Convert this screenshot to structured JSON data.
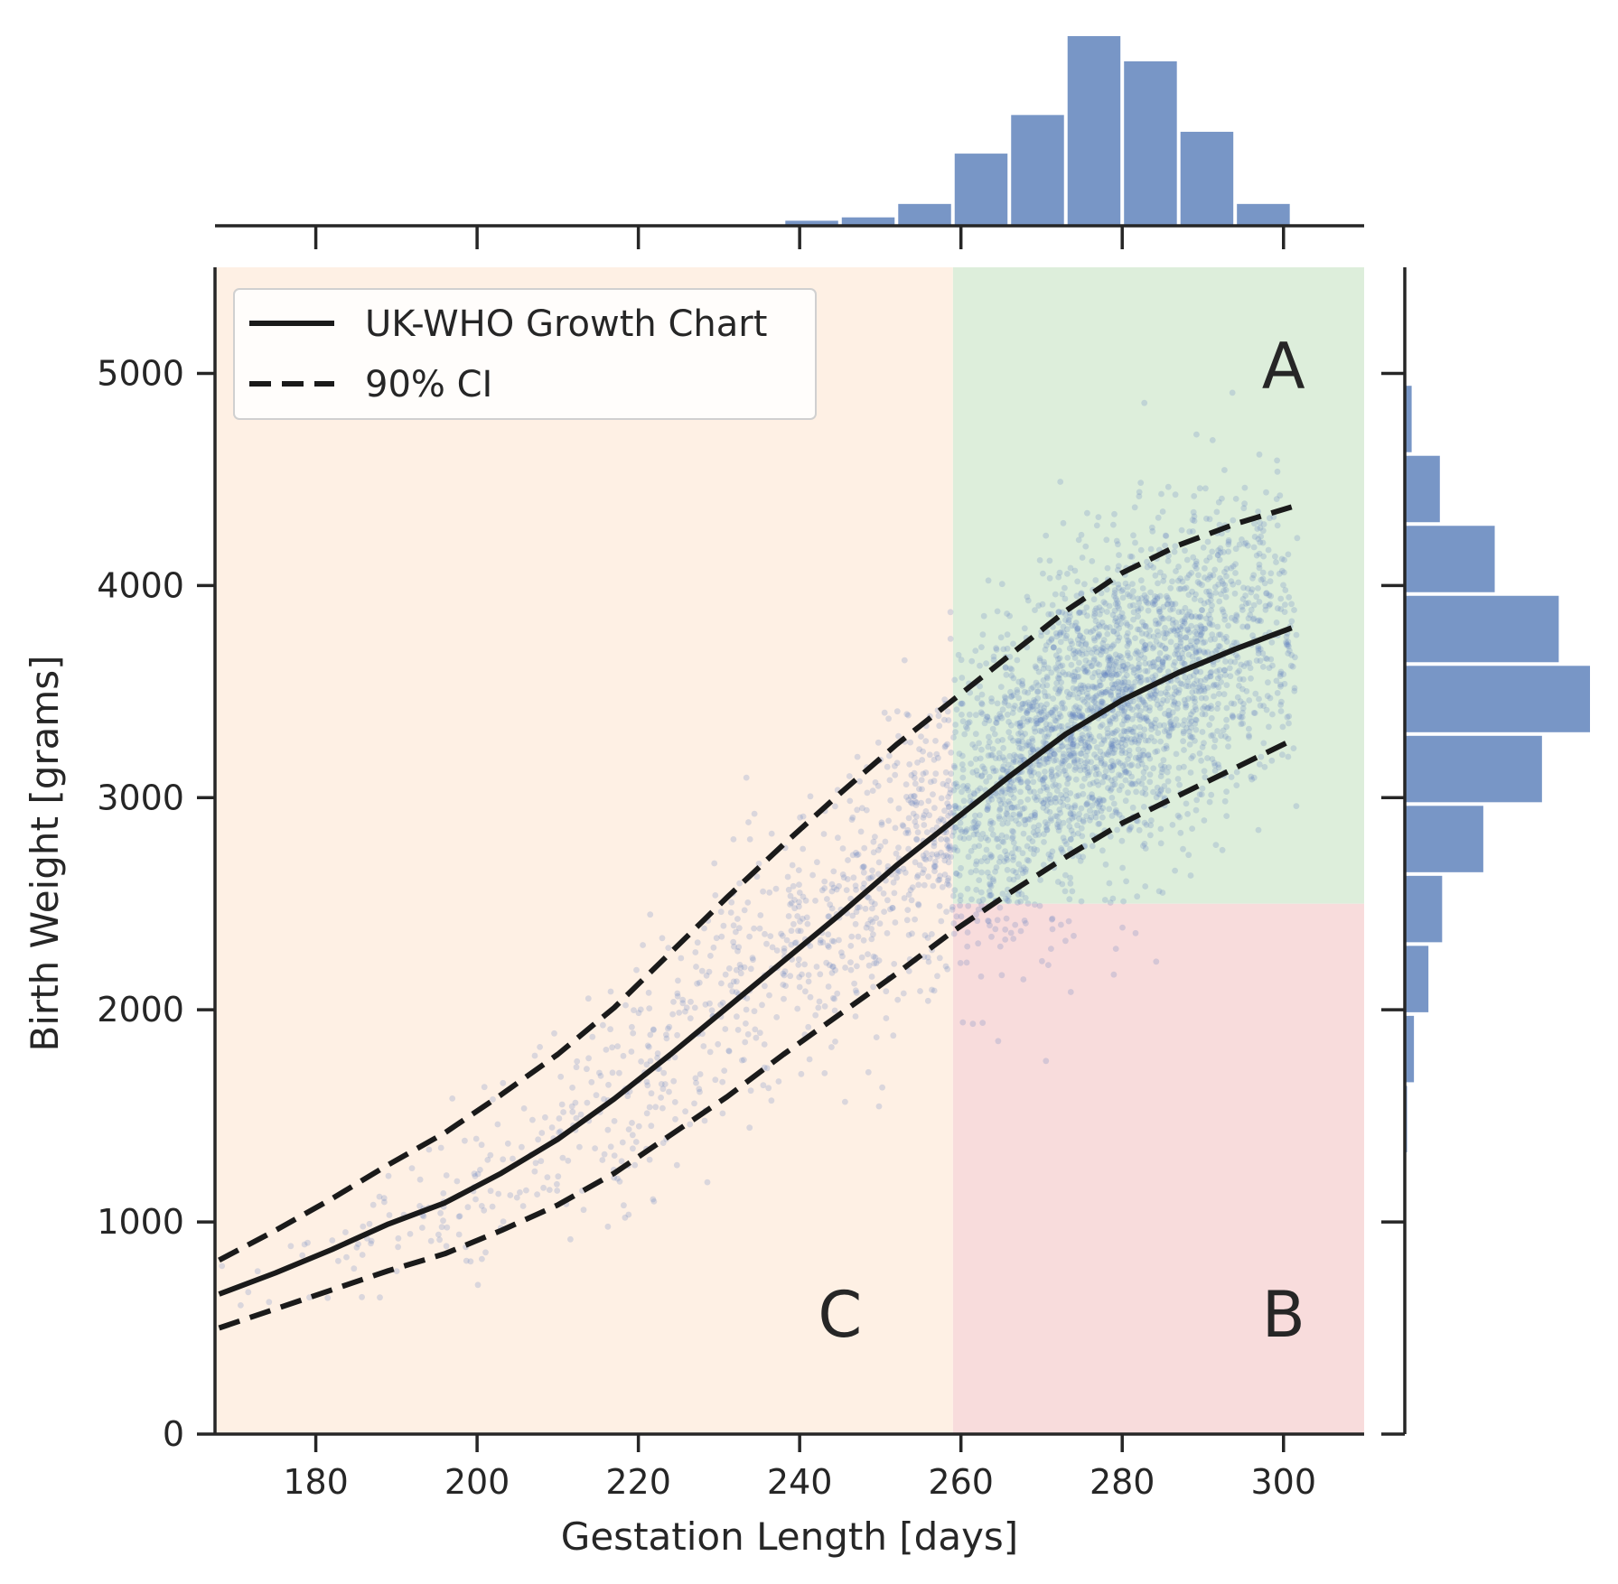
{
  "chart_data": {
    "type": "scatter",
    "xlabel": "Gestation Length [days]",
    "ylabel": "Birth Weight [grams]",
    "xlim": [
      167.5,
      310
    ],
    "ylim": [
      0,
      5500
    ],
    "xticks": [
      180,
      200,
      220,
      240,
      260,
      280,
      300
    ],
    "yticks": [
      0,
      1000,
      2000,
      3000,
      4000,
      5000
    ],
    "grid": false,
    "legend_position": "top-left",
    "legend": [
      {
        "label": "UK-WHO Growth Chart",
        "style": "solid"
      },
      {
        "label": "90% CI",
        "style": "dashed"
      }
    ],
    "regions": [
      {
        "label": "A",
        "x": [
          259,
          310
        ],
        "y": [
          2500,
          5500
        ],
        "color": "#ddeedb"
      },
      {
        "label": "B",
        "x": [
          259,
          310
        ],
        "y": [
          0,
          2500
        ],
        "color": "#f8dcdc"
      },
      {
        "label": "C",
        "x": [
          167.5,
          259
        ],
        "y": [
          0,
          5500
        ],
        "color": "#fef0e4"
      }
    ],
    "series": [
      {
        "name": "UK-WHO Growth Chart",
        "style": "solid",
        "x": [
          168,
          175,
          182,
          189,
          196,
          203,
          210,
          217,
          224,
          231,
          238,
          245,
          252,
          259,
          266,
          273,
          280,
          287,
          294,
          301
        ],
        "y": [
          660,
          760,
          870,
          990,
          1090,
          1230,
          1390,
          1580,
          1790,
          2010,
          2230,
          2450,
          2680,
          2890,
          3100,
          3300,
          3460,
          3590,
          3700,
          3800
        ]
      },
      {
        "name": "90% CI",
        "style": "dashed",
        "x": [
          168,
          175,
          182,
          189,
          196,
          203,
          210,
          217,
          224,
          231,
          238,
          245,
          252,
          259,
          266,
          273,
          280,
          287,
          294,
          301
        ],
        "y": [
          820,
          960,
          1110,
          1270,
          1420,
          1600,
          1790,
          2010,
          2270,
          2530,
          2780,
          3020,
          3250,
          3460,
          3670,
          3880,
          4060,
          4190,
          4290,
          4370
        ]
      },
      {
        "name": "90% CI",
        "style": "dashed",
        "x": [
          168,
          175,
          182,
          189,
          196,
          203,
          210,
          217,
          224,
          231,
          238,
          245,
          252,
          259,
          266,
          273,
          280,
          287,
          294,
          301
        ],
        "y": [
          500,
          590,
          680,
          770,
          850,
          960,
          1080,
          1230,
          1410,
          1590,
          1790,
          1980,
          2170,
          2370,
          2550,
          2720,
          2880,
          3010,
          3140,
          3270
        ]
      }
    ],
    "marginal_x_histogram": {
      "bins": [
        [
          238,
          245
        ],
        [
          245,
          252
        ],
        [
          252,
          259
        ],
        [
          259,
          266
        ],
        [
          266,
          273
        ],
        [
          273,
          280
        ],
        [
          280,
          287
        ],
        [
          287,
          294
        ],
        [
          294,
          301
        ]
      ],
      "counts": [
        3,
        5,
        13,
        43,
        66,
        113,
        98,
        56,
        13
      ]
    },
    "marginal_y_histogram": {
      "bins": [
        [
          0,
          330
        ],
        [
          330,
          660
        ],
        [
          660,
          990
        ],
        [
          990,
          1320
        ],
        [
          1320,
          1650
        ],
        [
          1650,
          1980
        ],
        [
          1980,
          2310
        ],
        [
          2310,
          2640
        ],
        [
          2640,
          2970
        ],
        [
          2970,
          3300
        ],
        [
          3300,
          3630
        ],
        [
          3630,
          3960
        ],
        [
          3960,
          4290
        ],
        [
          4290,
          4620
        ],
        [
          4620,
          4950
        ],
        [
          4950,
          5280
        ]
      ],
      "counts": [
        0,
        0,
        0,
        1,
        3,
        12,
        31,
        49,
        103,
        180,
        243,
        202,
        118,
        46,
        9,
        0
      ]
    },
    "scatter_cloud": [
      {
        "x_center": 278,
        "x_spread": 13,
        "count": 2600
      },
      {
        "x_center": 240,
        "x_spread": 16,
        "count": 500
      },
      {
        "x_center": 205,
        "x_spread": 20,
        "count": 200
      },
      {
        "x_center": 280,
        "x_spread": 22,
        "count": 260
      }
    ],
    "point_color": "#5a7bbf"
  }
}
